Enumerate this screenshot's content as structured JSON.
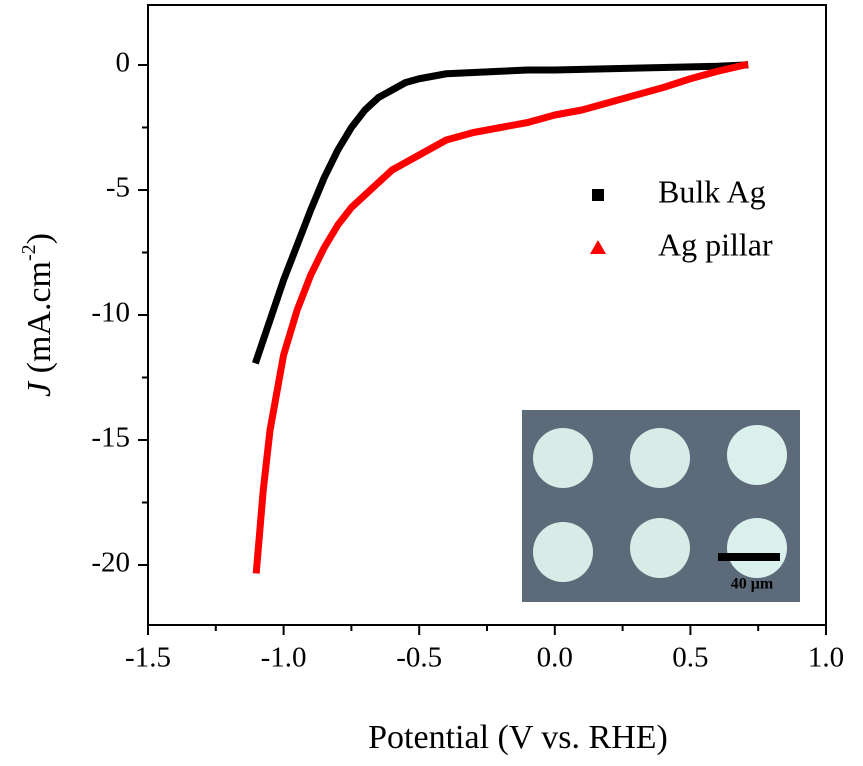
{
  "chart_data": {
    "type": "line",
    "xlabel": "Potential (V vs. RHE)",
    "ylabel_parts": [
      "J",
      " (mA.cm",
      "-2",
      ")"
    ],
    "xlim": [
      -1.5,
      1.0
    ],
    "ylim": [
      -22.4,
      2.4
    ],
    "xticks": [
      -1.5,
      {
        "value": -1.0,
        "label": "-1.0"
      },
      -0.5,
      {
        "value": 0,
        "label": "0.0"
      },
      0.5,
      {
        "value": 1.0,
        "label": "1.0"
      }
    ],
    "xminorticks": [
      -1.25,
      -0.75,
      -0.25,
      0.25,
      0.75
    ],
    "yticks": [
      0,
      -5,
      -10,
      -15,
      -20
    ],
    "yminorticks": [
      -2.5,
      -7.5,
      -12.5,
      -17.5
    ],
    "series": [
      {
        "name": "Bulk Ag",
        "color": "#000000",
        "marker": "square",
        "x": [
          -1.1,
          -1.05,
          -1.0,
          -0.95,
          -0.9,
          -0.85,
          -0.8,
          -0.75,
          -0.7,
          -0.65,
          -0.6,
          -0.55,
          -0.5,
          -0.4,
          -0.3,
          -0.2,
          -0.1,
          0,
          0.2,
          0.4,
          0.6,
          0.7
        ],
        "values": [
          -11.8,
          -10.2,
          -8.6,
          -7.2,
          -5.8,
          -4.5,
          -3.4,
          -2.5,
          -1.8,
          -1.3,
          -1.0,
          -0.7,
          -0.55,
          -0.35,
          -0.3,
          -0.25,
          -0.2,
          -0.2,
          -0.15,
          -0.1,
          -0.05,
          0
        ]
      },
      {
        "name": "Ag pillar",
        "color": "#ff0000",
        "marker": "triangle",
        "x": [
          -1.1,
          -1.075,
          -1.05,
          -1.0,
          -0.95,
          -0.9,
          -0.85,
          -0.8,
          -0.75,
          -0.7,
          -0.6,
          -0.5,
          -0.4,
          -0.3,
          -0.2,
          -0.1,
          0,
          0.1,
          0.2,
          0.3,
          0.4,
          0.5,
          0.6,
          0.7
        ],
        "values": [
          -20.2,
          -17.0,
          -14.6,
          -11.6,
          -9.8,
          -8.4,
          -7.3,
          -6.4,
          -5.7,
          -5.2,
          -4.2,
          -3.6,
          -3.0,
          -2.7,
          -2.5,
          -2.3,
          -2.0,
          -1.8,
          -1.5,
          -1.2,
          -0.9,
          -0.55,
          -0.25,
          0
        ]
      }
    ],
    "legend": "right",
    "annotations": [
      "40 μm"
    ]
  }
}
